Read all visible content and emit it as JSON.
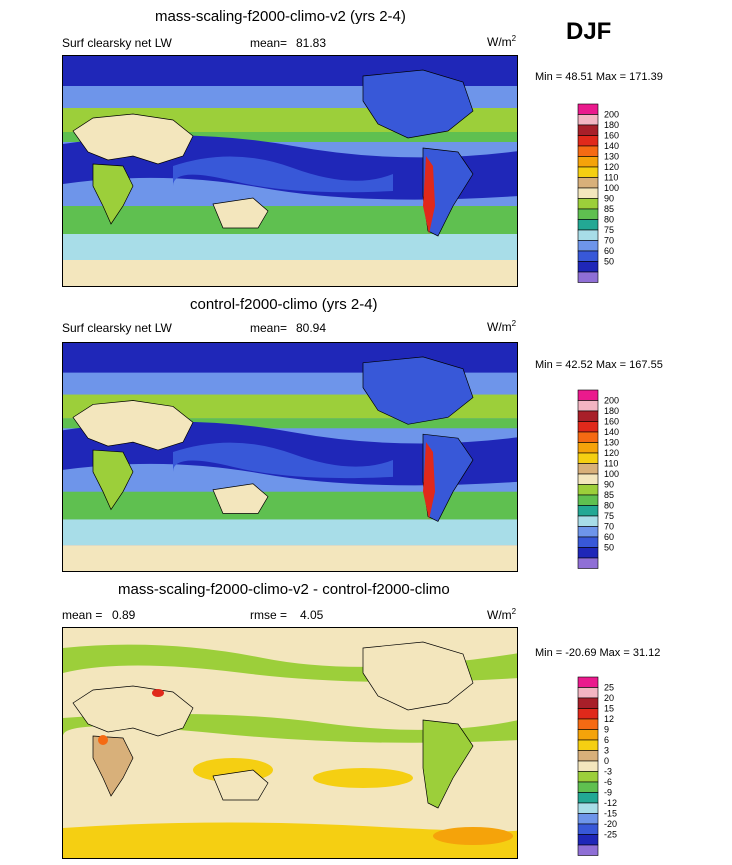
{
  "season": "DJF",
  "colors": {
    "abs_scale": [
      "#8f6fd6",
      "#1f27b8",
      "#3858d8",
      "#6e95ea",
      "#a8dde8",
      "#23a894",
      "#5fc050",
      "#9ccf3a",
      "#f3e6bd",
      "#d8b07a",
      "#f5cf12",
      "#f5a30a",
      "#f56a13",
      "#e0291b",
      "#a81f29",
      "#f3b5c2",
      "#ea1a8d"
    ],
    "diff_scale": [
      "#8f6fd6",
      "#1f27b8",
      "#3858d8",
      "#6e95ea",
      "#a8dde8",
      "#23a894",
      "#5fc050",
      "#9ccf3a",
      "#f3e6bd",
      "#d8b07a",
      "#f5cf12",
      "#f5a30a",
      "#f56a13",
      "#e0291b",
      "#a81f29",
      "#f3b5c2",
      "#ea1a8d"
    ]
  },
  "chart_data": [
    {
      "type": "heatmap",
      "title": "mass-scaling-f2000-climo-v2 (yrs 2-4)",
      "variable": "Surf clearsky net LW",
      "stat_label": "mean=",
      "stat_value": "81.83",
      "units": "W/m",
      "units_sup": "2",
      "minmax": "Min =  48.51 Max = 171.39",
      "min": 48.51,
      "max": 171.39,
      "mean": 81.83,
      "levels": [
        "50",
        "60",
        "70",
        "75",
        "80",
        "85",
        "90",
        "100",
        "110",
        "120",
        "130",
        "140",
        "160",
        "180",
        "200"
      ]
    },
    {
      "type": "heatmap",
      "title": "control-f2000-climo (yrs 2-4)",
      "variable": "Surf clearsky net LW",
      "stat_label": "mean=",
      "stat_value": "80.94",
      "units": "W/m",
      "units_sup": "2",
      "minmax": "Min =  42.52 Max = 167.55",
      "min": 42.52,
      "max": 167.55,
      "mean": 80.94,
      "levels": [
        "50",
        "60",
        "70",
        "75",
        "80",
        "85",
        "90",
        "100",
        "110",
        "120",
        "130",
        "140",
        "160",
        "180",
        "200"
      ]
    },
    {
      "type": "heatmap",
      "title": "mass-scaling-f2000-climo-v2 - control-f2000-climo",
      "mean_label": "mean =",
      "mean_value": "0.89",
      "rmse_label": "rmse =",
      "rmse_value": "4.05",
      "units": "W/m",
      "units_sup": "2",
      "minmax": "Min = -20.69 Max =  31.12",
      "min": -20.69,
      "max": 31.12,
      "mean": 0.89,
      "rmse": 4.05,
      "levels": [
        "-25",
        "-20",
        "-15",
        "-12",
        "-9",
        "-6",
        "-3",
        "0",
        "3",
        "6",
        "9",
        "12",
        "15",
        "20",
        "25"
      ]
    }
  ]
}
